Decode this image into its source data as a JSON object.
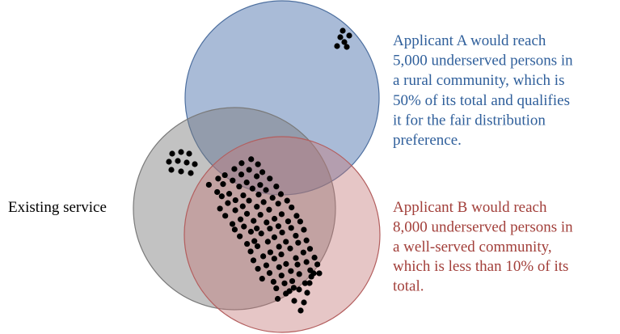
{
  "labels": {
    "existing": "Existing service"
  },
  "applicant_a": {
    "lines": [
      "Applicant A would reach",
      "5,000 underserved persons in",
      "a rural community, which is",
      "50% of its total and qualifies",
      "it for the fair distribution",
      "preference."
    ]
  },
  "applicant_b": {
    "lines": [
      "Applicant B would reach",
      "8,000 underserved persons in",
      "a well-served community,",
      "which is less than 10% of its",
      "total."
    ]
  }
}
